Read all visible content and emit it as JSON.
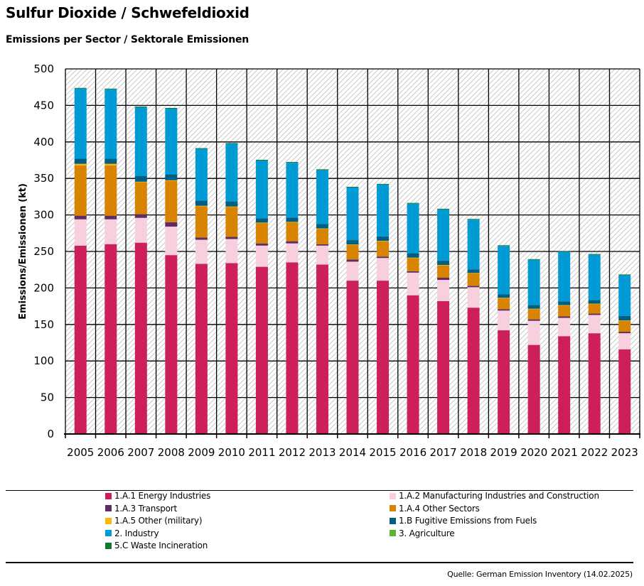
{
  "header": {
    "title": "Sulfur Dioxide / Schwefeldioxid",
    "subtitle": "Emissions per Sector / Sektorale Emissionen"
  },
  "source": "Quelle: German Emission Inventory (14.02.2025)",
  "chart_data": {
    "type": "bar",
    "stacked": true,
    "title": "Sulfur Dioxide / Schwefeldioxid",
    "subtitle": "Emissions per Sector / Sektorale Emissionen",
    "xlabel": "",
    "ylabel": "Emissions/Emissionen (kt)",
    "ylim": [
      0,
      500
    ],
    "yticks": [
      0,
      50,
      100,
      150,
      200,
      250,
      300,
      350,
      400,
      450,
      500
    ],
    "grid": true,
    "legend_position": "bottom",
    "categories": [
      "2005",
      "2006",
      "2007",
      "2008",
      "2009",
      "2010",
      "2011",
      "2012",
      "2013",
      "2014",
      "2015",
      "2016",
      "2017",
      "2018",
      "2019",
      "2020",
      "2021",
      "2022",
      "2023"
    ],
    "series": [
      {
        "name": "1.A.1 Energy Industries",
        "color": "#cd1f5c",
        "values": [
          258,
          260,
          262,
          245,
          233,
          234,
          229,
          235,
          232,
          210,
          210,
          190,
          182,
          173,
          142,
          122,
          134,
          138,
          116
        ]
      },
      {
        "name": "1.A.2 Manufacturing Industries and Construction",
        "color": "#f7cfdf",
        "values": [
          36,
          34,
          34,
          39,
          33,
          33,
          29,
          26,
          26,
          26,
          31,
          31,
          29,
          28,
          27,
          33,
          25,
          25,
          22
        ]
      },
      {
        "name": "1.A.3 Transport",
        "color": "#5f2d63",
        "values": [
          5,
          5,
          5,
          6,
          3,
          3,
          3,
          3,
          2,
          3,
          2,
          2,
          3,
          2,
          2,
          2,
          2,
          2,
          2
        ]
      },
      {
        "name": "1.A.4 Other Sectors",
        "color": "#d88400",
        "values": [
          69,
          69,
          44,
          57,
          43,
          41,
          28,
          26,
          21,
          20,
          21,
          18,
          17,
          17,
          15,
          14,
          15,
          13,
          15
        ]
      },
      {
        "name": "1.A.5 Other (military)",
        "color": "#f8b900",
        "values": [
          2,
          2,
          0.5,
          0.5,
          0.5,
          0.5,
          0.5,
          0.5,
          0.5,
          0.5,
          0.5,
          0.5,
          0.5,
          0.5,
          0.5,
          0.5,
          0.5,
          0.5,
          0.5
        ]
      },
      {
        "name": "1.B Fugitive Emissions from Fuels",
        "color": "#005e85",
        "values": [
          7,
          7,
          8,
          8,
          7,
          7,
          6,
          6,
          6,
          6,
          6,
          6,
          6,
          5,
          5,
          5,
          5,
          5,
          6
        ]
      },
      {
        "name": "2. Industry",
        "color": "#009ad4",
        "values": [
          96,
          95,
          94,
          90,
          71,
          79,
          79,
          75,
          74,
          72,
          71,
          68,
          70,
          68,
          66,
          62,
          68,
          62,
          56
        ]
      },
      {
        "name": "3. Agriculture",
        "color": "#5eb134",
        "values": [
          0,
          0,
          0,
          0,
          0,
          0,
          0,
          0,
          0,
          0,
          0,
          0,
          0,
          0,
          0,
          0,
          0,
          0,
          0
        ]
      },
      {
        "name": "5.C Waste Incineration",
        "color": "#0f7a34",
        "values": [
          1,
          1,
          1,
          1,
          1,
          1,
          1,
          1,
          1,
          1,
          1,
          1,
          1,
          1,
          1,
          1,
          1,
          1,
          1
        ]
      }
    ]
  },
  "legend": {
    "items": [
      {
        "label": "1.A.1 Energy Industries",
        "color": "#cd1f5c"
      },
      {
        "label": "1.A.2 Manufacturing Industries and Construction",
        "color": "#f7cfdf"
      },
      {
        "label": "1.A.3 Transport",
        "color": "#5f2d63"
      },
      {
        "label": "1.A.4 Other Sectors",
        "color": "#d88400"
      },
      {
        "label": "1.A.5 Other (military)",
        "color": "#f8b900"
      },
      {
        "label": "1.B Fugitive Emissions from Fuels",
        "color": "#005e85"
      },
      {
        "label": "2. Industry",
        "color": "#009ad4"
      },
      {
        "label": "3. Agriculture",
        "color": "#5eb134"
      },
      {
        "label": "5.C Waste Incineration",
        "color": "#0f7a34"
      }
    ]
  }
}
